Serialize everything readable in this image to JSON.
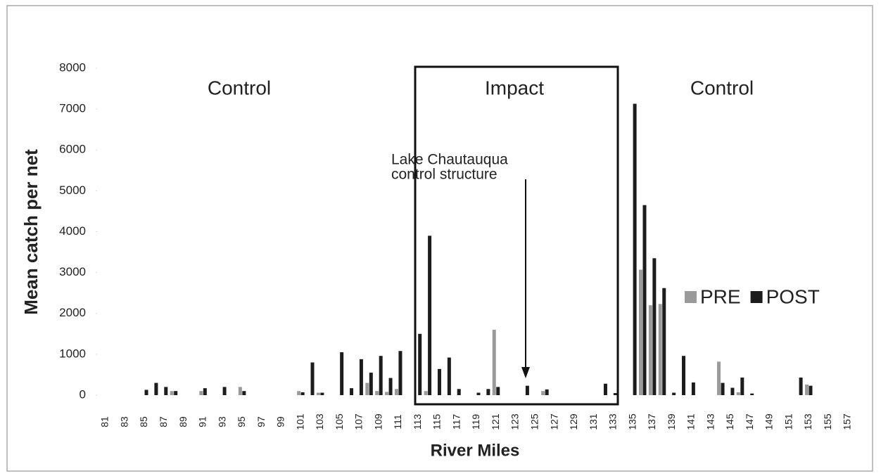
{
  "chart_data": {
    "type": "bar",
    "x_label": "River Miles",
    "y_label": "Mean catch per net",
    "region_labels": [
      "Control",
      "Impact",
      "Control"
    ],
    "annotation": [
      "Lake Chautauqua",
      "control structure"
    ],
    "categories": [
      81,
      null,
      83,
      null,
      85,
      null,
      87,
      null,
      89,
      null,
      91,
      null,
      93,
      null,
      95,
      null,
      97,
      null,
      99,
      null,
      101,
      null,
      103,
      null,
      105,
      null,
      107,
      null,
      109,
      null,
      111,
      null,
      113,
      null,
      115,
      null,
      117,
      null,
      119,
      null,
      121,
      null,
      123,
      null,
      125,
      null,
      127,
      null,
      129,
      null,
      131,
      null,
      133,
      null,
      135,
      null,
      137,
      null,
      139,
      null,
      141,
      null,
      143,
      null,
      145,
      null,
      147,
      null,
      149,
      null,
      151,
      null,
      153,
      null,
      155,
      null,
      157
    ],
    "series": [
      {
        "name": "PRE",
        "color": "#9a9a9a",
        "values": [
          0,
          0,
          0,
          0,
          0,
          0,
          0,
          100,
          0,
          0,
          100,
          0,
          0,
          0,
          200,
          0,
          0,
          0,
          0,
          0,
          100,
          0,
          60,
          0,
          0,
          0,
          0,
          300,
          100,
          80,
          150,
          0,
          0,
          100,
          0,
          0,
          0,
          0,
          0,
          0,
          1600,
          0,
          0,
          0,
          0,
          100,
          0,
          0,
          0,
          0,
          0,
          0,
          0,
          0,
          0,
          3070,
          2200,
          2230,
          0,
          0,
          0,
          0,
          0,
          820,
          0,
          70,
          0,
          0,
          0,
          0,
          0,
          0,
          260,
          0,
          0,
          0,
          0
        ]
      },
      {
        "name": "POST",
        "color": "#1c1c1c",
        "values": [
          0,
          0,
          0,
          0,
          130,
          300,
          200,
          100,
          0,
          0,
          170,
          0,
          200,
          0,
          100,
          0,
          0,
          0,
          0,
          0,
          70,
          800,
          60,
          0,
          1050,
          170,
          880,
          550,
          960,
          420,
          1080,
          0,
          1500,
          3900,
          640,
          920,
          150,
          0,
          60,
          150,
          200,
          0,
          0,
          230,
          0,
          140,
          0,
          0,
          0,
          0,
          0,
          280,
          50,
          0,
          7130,
          4650,
          3350,
          2620,
          60,
          960,
          310,
          0,
          0,
          300,
          180,
          430,
          40,
          0,
          0,
          0,
          0,
          430,
          230,
          0,
          0,
          0,
          0
        ]
      }
    ],
    "ylim": [
      0,
      8000
    ],
    "yticks": [
      0,
      1000,
      2000,
      3000,
      4000,
      5000,
      6000,
      7000,
      8000
    ]
  }
}
